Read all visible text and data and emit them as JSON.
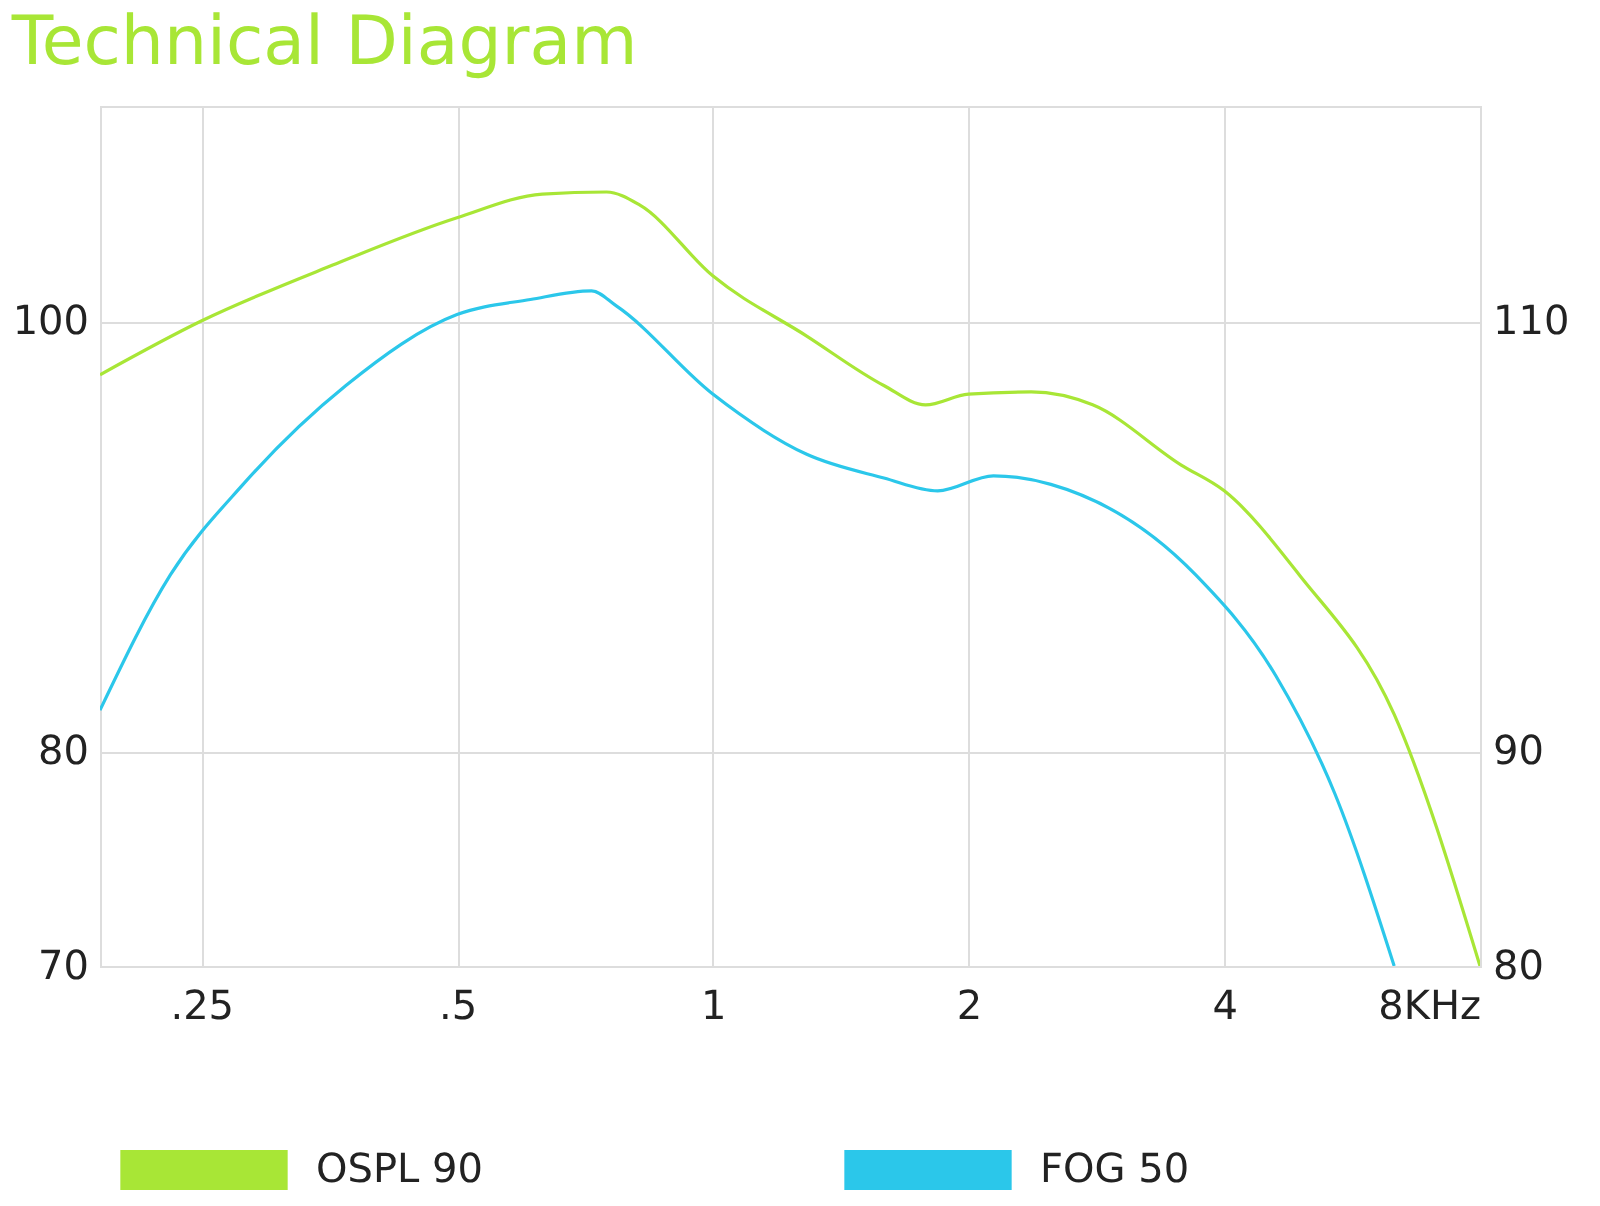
{
  "chart_data": {
    "type": "line",
    "title": "Technical Diagram",
    "xlim": [
      0.19,
      8
    ],
    "xticks": [
      {
        "value": 0.25,
        "label": ".25"
      },
      {
        "value": 0.5,
        "label": ".5"
      },
      1,
      2,
      4,
      {
        "value": 8,
        "label": "8KHz"
      }
    ],
    "ylim": [
      70,
      110
    ],
    "yticks": [
      70,
      80,
      100
    ],
    "y2lim": [
      80,
      120
    ],
    "y2ticks": [
      80,
      90,
      110
    ],
    "grid": true,
    "legend": "bottom",
    "log": "x",
    "line_style": "solid",
    "marker": "none",
    "series": [
      {
        "name": "OSPL 90",
        "color": "#a8e636",
        "x": [
          0.19,
          0.25,
          0.357,
          0.5,
          0.63,
          0.75,
          0.82,
          1,
          1.29,
          1.59,
          1.78,
          2,
          2.37,
          2.8,
          3.56,
          4,
          4.9,
          6.34,
          8
        ],
        "values": [
          97.5,
          100,
          102.6,
          104.8,
          105.9,
          106,
          105.4,
          102.1,
          99.3,
          97,
          96.1,
          96.6,
          96.7,
          96.1,
          93.3,
          92.1,
          88.2,
          81.7,
          70
        ]
      },
      {
        "name": "FOG 50",
        "color": "#2bc7ea",
        "axis": "y2",
        "x": [
          0.19,
          0.23,
          0.28,
          0.37,
          0.5,
          0.61,
          0.72,
          0.77,
          1,
          1.29,
          1.59,
          1.84,
          2.14,
          2.5,
          3.7,
          4.6,
          5.4,
          6.34
        ],
        "values": [
          91.9,
          98.2,
          102.4,
          107,
          110.3,
          111,
          111.4,
          110.7,
          106.6,
          103.8,
          102.7,
          102.1,
          102.8,
          102.4,
          98.2,
          93.5,
          88,
          80
        ]
      }
    ]
  }
}
